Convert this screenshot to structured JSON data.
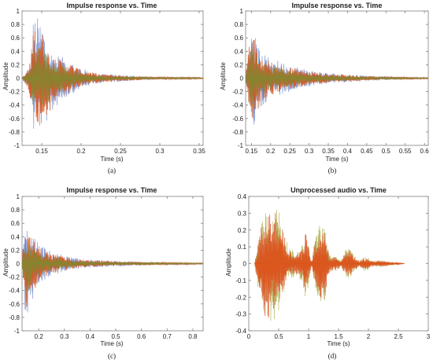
{
  "chart_data": [
    {
      "type": "line",
      "panel_label": "(a)",
      "title": "Impulse response vs. Time",
      "xlabel": "Time (s)",
      "ylabel": "Amplitude",
      "xlim": [
        0.125,
        0.355
      ],
      "ylim": [
        -1,
        1
      ],
      "xticks": [
        0.15,
        0.2,
        0.25,
        0.3,
        0.35
      ],
      "xtick_labels": [
        "0.15",
        "0.2",
        "0.25",
        "0.3",
        "0.35"
      ],
      "yticks": [
        -1,
        -0.8,
        -0.6,
        -0.4,
        -0.2,
        0,
        0.2,
        0.4,
        0.6,
        0.8,
        1
      ],
      "ytick_labels": [
        "-1",
        "-0.8",
        "-0.6",
        "-0.4",
        "-0.2",
        "0",
        "0.2",
        "0.4",
        "0.6",
        "0.8",
        "1"
      ],
      "series_colors": [
        "#4f6fbf",
        "#d95319",
        "#7e8a2f"
      ],
      "envelope": {
        "description_points_time": [
          0.125,
          0.13,
          0.135,
          0.14,
          0.145,
          0.15,
          0.16,
          0.17,
          0.18,
          0.2,
          0.22,
          0.25,
          0.28,
          0.3,
          0.33,
          0.355
        ],
        "upper": [
          0.02,
          0.08,
          0.25,
          0.95,
          0.9,
          0.85,
          0.4,
          0.35,
          0.3,
          0.15,
          0.08,
          0.05,
          0.03,
          0.02,
          0.02,
          0.01
        ],
        "lower": [
          -0.02,
          -0.1,
          -0.3,
          -0.85,
          -0.8,
          -0.75,
          -0.6,
          -0.4,
          -0.3,
          -0.15,
          -0.08,
          -0.05,
          -0.03,
          -0.02,
          -0.02,
          -0.01
        ]
      }
    },
    {
      "type": "line",
      "panel_label": "(b)",
      "title": "Impulse response vs. Time",
      "xlabel": "Time (s)",
      "ylabel": "Amplitude",
      "xlim": [
        0.135,
        0.61
      ],
      "ylim": [
        -1,
        1
      ],
      "xticks": [
        0.15,
        0.2,
        0.25,
        0.3,
        0.35,
        0.4,
        0.45,
        0.5,
        0.55,
        0.6
      ],
      "xtick_labels": [
        "0.15",
        "0.2",
        "0.25",
        "0.3",
        "0.35",
        "0.4",
        "0.45",
        "0.5",
        "0.55",
        "0.6"
      ],
      "yticks": [
        -1,
        -0.8,
        -0.6,
        -0.4,
        -0.2,
        0,
        0.2,
        0.4,
        0.6,
        0.8,
        1
      ],
      "ytick_labels": [
        "-1",
        "-0.8",
        "-0.6",
        "-0.4",
        "-0.2",
        "0",
        "0.2",
        "0.4",
        "0.6",
        "0.8",
        "1"
      ],
      "series_colors": [
        "#4f6fbf",
        "#d95319",
        "#7e8a2f"
      ],
      "envelope": {
        "description_points_time": [
          0.135,
          0.14,
          0.15,
          0.16,
          0.17,
          0.18,
          0.2,
          0.25,
          0.3,
          0.35,
          0.4,
          0.45,
          0.5,
          0.55,
          0.61
        ],
        "upper": [
          0.05,
          0.3,
          0.95,
          0.6,
          0.45,
          0.35,
          0.3,
          0.2,
          0.12,
          0.08,
          0.06,
          0.04,
          0.03,
          0.02,
          0.01
        ],
        "lower": [
          -0.05,
          -0.3,
          -0.9,
          -0.7,
          -0.5,
          -0.4,
          -0.3,
          -0.2,
          -0.12,
          -0.08,
          -0.06,
          -0.04,
          -0.03,
          -0.02,
          -0.01
        ]
      }
    },
    {
      "type": "line",
      "panel_label": "(c)",
      "title": "Impulse response vs. Time",
      "xlabel": "Time (s)",
      "ylabel": "Amplitude",
      "xlim": [
        0.135,
        0.84
      ],
      "ylim": [
        -1,
        1
      ],
      "xticks": [
        0.2,
        0.3,
        0.4,
        0.5,
        0.6,
        0.7,
        0.8
      ],
      "xtick_labels": [
        "0.2",
        "0.3",
        "0.4",
        "0.5",
        "0.6",
        "0.7",
        "0.8"
      ],
      "yticks": [
        -1,
        -0.8,
        -0.6,
        -0.4,
        -0.2,
        0,
        0.2,
        0.4,
        0.6,
        0.8,
        1
      ],
      "ytick_labels": [
        "-1",
        "-0.8",
        "-0.6",
        "-0.4",
        "-0.2",
        "0",
        "0.2",
        "0.4",
        "0.6",
        "0.8",
        "1"
      ],
      "series_colors": [
        "#4f6fbf",
        "#d95319",
        "#7e8a2f"
      ],
      "envelope": {
        "description_points_time": [
          0.135,
          0.14,
          0.15,
          0.16,
          0.18,
          0.2,
          0.25,
          0.3,
          0.35,
          0.4,
          0.5,
          0.6,
          0.7,
          0.84
        ],
        "upper": [
          0.05,
          0.35,
          0.55,
          0.5,
          0.4,
          0.3,
          0.18,
          0.12,
          0.08,
          0.06,
          0.04,
          0.03,
          0.02,
          0.01
        ],
        "lower": [
          -0.05,
          -0.35,
          -0.95,
          -0.7,
          -0.5,
          -0.3,
          -0.18,
          -0.12,
          -0.08,
          -0.06,
          -0.04,
          -0.03,
          -0.02,
          -0.01
        ]
      }
    },
    {
      "type": "line",
      "panel_label": "(d)",
      "title": "Unprocessed audio vs. Time",
      "xlabel": "Time (s)",
      "ylabel": "Amplitude",
      "xlim": [
        0,
        3
      ],
      "ylim": [
        -0.4,
        0.4
      ],
      "xticks": [
        0,
        0.5,
        1,
        1.5,
        2,
        2.5,
        3
      ],
      "xtick_labels": [
        "0",
        "0.5",
        "1",
        "1.5",
        "2",
        "2.5",
        "3"
      ],
      "yticks": [
        -0.4,
        -0.3,
        -0.2,
        -0.1,
        0,
        0.1,
        0.2,
        0.3,
        0.4
      ],
      "ytick_labels": [
        "-0.4",
        "-0.3",
        "-0.2",
        "-0.1",
        "0",
        "0.1",
        "0.2",
        "0.3",
        "0.4"
      ],
      "series_colors": [
        "#a0a030",
        "#e0603a",
        "#d95319"
      ],
      "envelope": {
        "description_points_time": [
          0.1,
          0.2,
          0.3,
          0.4,
          0.5,
          0.6,
          0.65,
          0.8,
          0.9,
          0.95,
          1.05,
          1.15,
          1.25,
          1.35,
          1.45,
          1.55,
          1.6,
          1.7,
          1.75,
          1.85,
          1.95,
          2.05,
          2.15,
          2.25,
          2.4,
          2.6
        ],
        "upper": [
          0.01,
          0.25,
          0.33,
          0.37,
          0.33,
          0.2,
          0.1,
          0.07,
          0.12,
          0.22,
          0.02,
          0.25,
          0.28,
          0.05,
          0.05,
          0.02,
          0.08,
          0.1,
          0.05,
          0.02,
          0.05,
          0.02,
          0.02,
          0.02,
          0.01,
          0.0
        ],
        "lower": [
          -0.01,
          -0.3,
          -0.4,
          -0.35,
          -0.3,
          -0.2,
          -0.1,
          -0.07,
          -0.12,
          -0.22,
          -0.02,
          -0.25,
          -0.28,
          -0.05,
          -0.05,
          -0.02,
          -0.08,
          -0.1,
          -0.05,
          -0.02,
          -0.05,
          -0.02,
          -0.02,
          -0.02,
          -0.01,
          0.0
        ]
      }
    }
  ]
}
